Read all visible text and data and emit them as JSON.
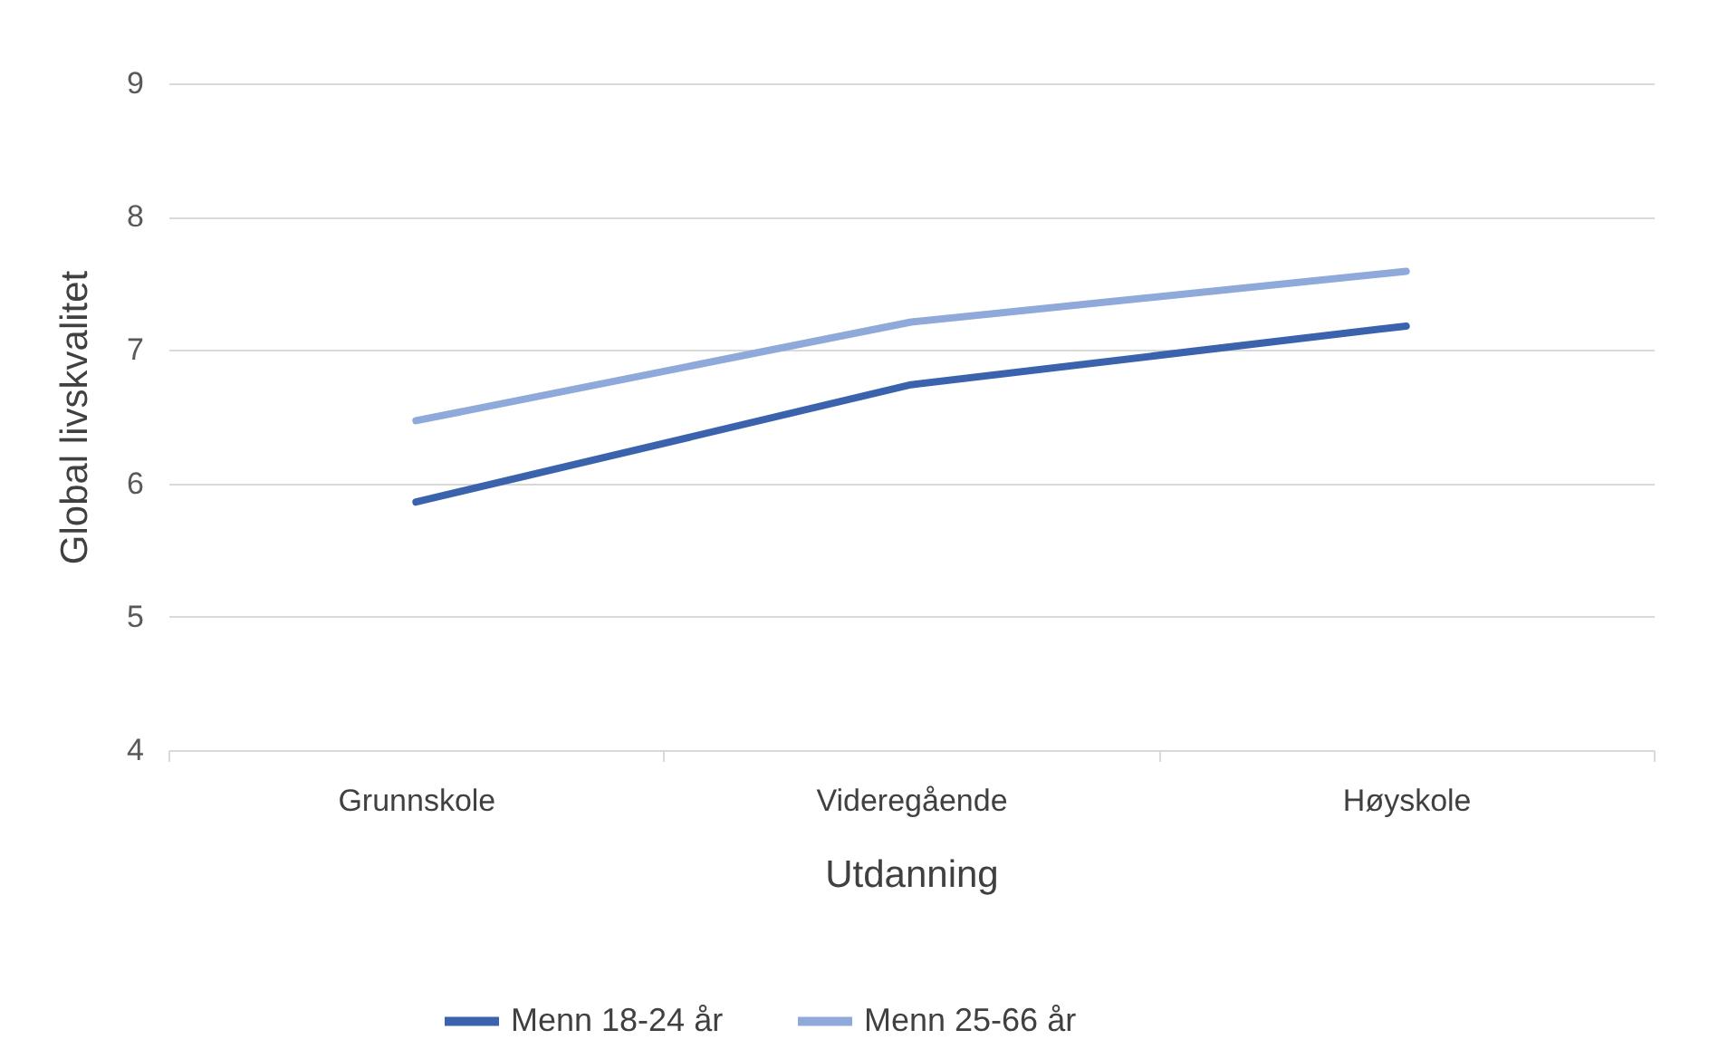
{
  "chart_data": {
    "type": "line",
    "xlabel": "Utdanning",
    "ylabel": "Global livskvalitet",
    "categories": [
      "Grunnskole",
      "Videregående",
      "Høyskole"
    ],
    "series": [
      {
        "name": "Menn 18-24 år",
        "color": "#3a62ad",
        "values": [
          5.86,
          6.74,
          7.18
        ]
      },
      {
        "name": "Menn 25-66 år",
        "color": "#8fa9da",
        "values": [
          6.47,
          7.21,
          7.59
        ]
      }
    ],
    "ylim": [
      4,
      9
    ],
    "yticks": [
      4,
      5,
      6,
      7,
      8,
      9
    ],
    "grid": "y",
    "legend": "bottom",
    "marker": "none",
    "line_style": "solid"
  }
}
